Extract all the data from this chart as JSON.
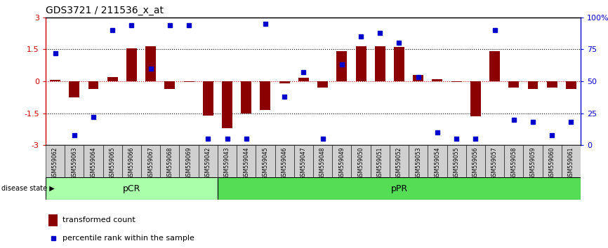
{
  "title": "GDS3721 / 211536_x_at",
  "samples": [
    "GSM559062",
    "GSM559063",
    "GSM559064",
    "GSM559065",
    "GSM559066",
    "GSM559067",
    "GSM559068",
    "GSM559069",
    "GSM559042",
    "GSM559043",
    "GSM559044",
    "GSM559045",
    "GSM559046",
    "GSM559047",
    "GSM559048",
    "GSM559049",
    "GSM559050",
    "GSM559051",
    "GSM559052",
    "GSM559053",
    "GSM559054",
    "GSM559055",
    "GSM559056",
    "GSM559057",
    "GSM559058",
    "GSM559059",
    "GSM559060",
    "GSM559061"
  ],
  "bar_values": [
    0.05,
    -0.75,
    -0.35,
    0.2,
    1.55,
    1.65,
    -0.35,
    -0.05,
    -1.6,
    -2.2,
    -1.5,
    -1.35,
    -0.1,
    0.15,
    -0.3,
    1.4,
    1.65,
    1.65,
    1.6,
    0.3,
    0.1,
    -0.05,
    -1.65,
    1.4,
    -0.3,
    -0.35,
    -0.3,
    -0.35
  ],
  "percentile_values": [
    72,
    8,
    22,
    90,
    94,
    60,
    94,
    94,
    5,
    5,
    5,
    95,
    38,
    57,
    5,
    63,
    85,
    88,
    80,
    53,
    10,
    5,
    5,
    90,
    20,
    18,
    8,
    18
  ],
  "pCR_count": 9,
  "pPR_count": 19,
  "ylim": [
    -3,
    3
  ],
  "yticks_left": [
    -3,
    -1.5,
    0,
    1.5,
    3
  ],
  "yticks_right": [
    0,
    25,
    50,
    75,
    100
  ],
  "bar_color": "#8B0000",
  "dot_color": "#0000CD",
  "pCR_color": "#AAFFAA",
  "pPR_color": "#55DD55",
  "legend_bar_label": "transformed count",
  "legend_dot_label": "percentile rank within the sample"
}
